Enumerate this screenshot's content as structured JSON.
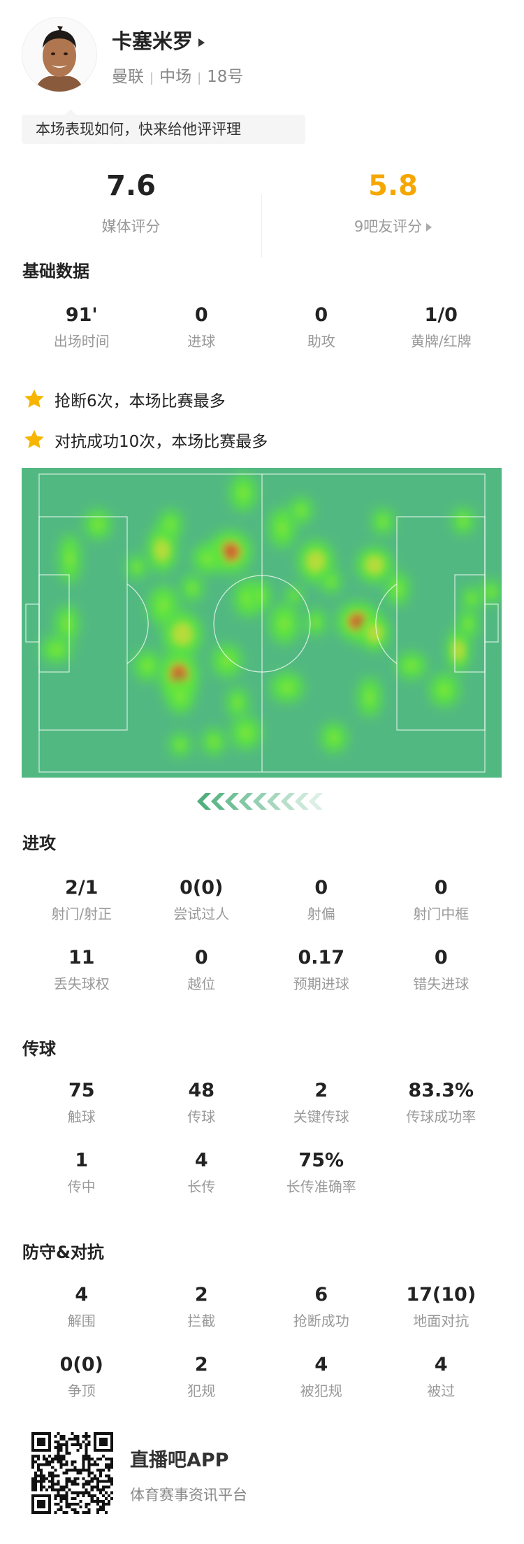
{
  "player": {
    "name": "卡塞米罗",
    "team": "曼联",
    "position": "中场",
    "number": "18号"
  },
  "prompt_bubble": "本场表现如何，快来给他评评理",
  "ratings": {
    "media": {
      "value": "7.6",
      "label": "媒体评分"
    },
    "fans": {
      "value": "5.8",
      "label": "9吧友评分",
      "color": "#f5a700"
    }
  },
  "basic": {
    "title": "基础数据",
    "items": [
      {
        "value": "91'",
        "label": "出场时间"
      },
      {
        "value": "0",
        "label": "进球"
      },
      {
        "value": "0",
        "label": "助攻"
      },
      {
        "value": "1/0",
        "label": "黄牌/红牌"
      }
    ]
  },
  "highlights": [
    {
      "icon": "star-icon",
      "text": "抢断6次，本场比赛最多"
    },
    {
      "icon": "star-icon",
      "text": "对抗成功10次，本场比赛最多"
    }
  ],
  "heatmap": {
    "pitch_color": "#52b882",
    "direction": "attacking-left"
  },
  "attack": {
    "title": "进攻",
    "items": [
      {
        "value": "2/1",
        "label": "射门/射正"
      },
      {
        "value": "0(0)",
        "label": "尝试过人"
      },
      {
        "value": "0",
        "label": "射偏"
      },
      {
        "value": "0",
        "label": "射门中框"
      },
      {
        "value": "11",
        "label": "丢失球权"
      },
      {
        "value": "0",
        "label": "越位"
      },
      {
        "value": "0.17",
        "label": "预期进球"
      },
      {
        "value": "0",
        "label": "错失进球"
      }
    ]
  },
  "passing": {
    "title": "传球",
    "items": [
      {
        "value": "75",
        "label": "触球"
      },
      {
        "value": "48",
        "label": "传球"
      },
      {
        "value": "2",
        "label": "关键传球"
      },
      {
        "value": "83.3%",
        "label": "传球成功率"
      },
      {
        "value": "1",
        "label": "传中"
      },
      {
        "value": "4",
        "label": "长传"
      },
      {
        "value": "75%",
        "label": "长传准确率"
      }
    ]
  },
  "defense": {
    "title": "防守&对抗",
    "items": [
      {
        "value": "4",
        "label": "解围"
      },
      {
        "value": "2",
        "label": "拦截"
      },
      {
        "value": "6",
        "label": "抢断成功"
      },
      {
        "value": "17(10)",
        "label": "地面对抗"
      },
      {
        "value": "0(0)",
        "label": "争顶"
      },
      {
        "value": "2",
        "label": "犯规"
      },
      {
        "value": "4",
        "label": "被犯规"
      },
      {
        "value": "4",
        "label": "被过"
      }
    ]
  },
  "footer": {
    "app_name": "直播吧APP",
    "slogan": "体育赛事资讯平台"
  }
}
